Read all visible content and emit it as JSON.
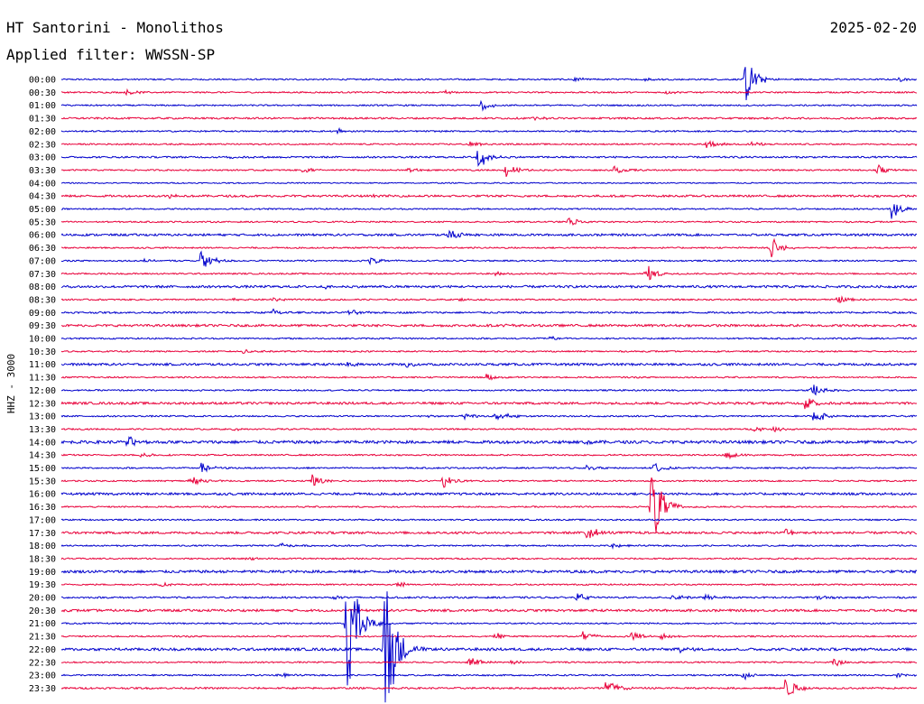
{
  "header": {
    "station": "HT Santorini - Monolithos",
    "date": "2025-02-20",
    "filter": "Applied filter: WWSSN-SP"
  },
  "chart_data": {
    "type": "line",
    "title": "HT Santorini - Monolithos",
    "ylabel": "HHZ - 3000",
    "row_labels": [
      "00:00",
      "00:30",
      "01:00",
      "01:30",
      "02:00",
      "02:30",
      "03:00",
      "03:30",
      "04:00",
      "04:30",
      "05:00",
      "05:30",
      "06:00",
      "06:30",
      "07:00",
      "07:30",
      "08:00",
      "08:30",
      "09:00",
      "09:30",
      "10:00",
      "10:30",
      "11:00",
      "11:30",
      "12:00",
      "12:30",
      "13:00",
      "13:30",
      "14:00",
      "14:30",
      "15:00",
      "15:30",
      "16:00",
      "16:30",
      "17:00",
      "17:30",
      "18:00",
      "18:30",
      "19:00",
      "19:30",
      "20:00",
      "20:30",
      "21:00",
      "21:30",
      "22:00",
      "22:30",
      "23:00",
      "23:30"
    ],
    "trace_colors": [
      "#0000cc",
      "#e8003a"
    ],
    "x_units": "minutes within 30-minute line",
    "x_range": [
      0,
      30
    ],
    "noise_level": [
      1.0,
      1.0,
      1.0,
      1.2,
      1.0,
      1.0,
      1.2,
      1.0,
      0.8,
      1.4,
      1.0,
      1.0,
      1.5,
      1.0,
      1.0,
      1.0,
      1.6,
      1.0,
      1.2,
      1.6,
      1.0,
      1.0,
      1.6,
      1.0,
      1.0,
      1.6,
      1.0,
      1.0,
      2.0,
      1.0,
      1.0,
      1.0,
      1.6,
      1.0,
      1.0,
      1.6,
      1.0,
      1.0,
      1.8,
      1.0,
      1.2,
      1.6,
      1.0,
      1.0,
      1.8,
      1.0,
      1.0,
      1.2
    ],
    "events": [
      {
        "row": 0,
        "t": 17.9,
        "amp": 3
      },
      {
        "row": 0,
        "t": 20.4,
        "amp": 3
      },
      {
        "row": 0,
        "t": 24.0,
        "amp": 28
      },
      {
        "row": 0,
        "t": 29.4,
        "amp": 2
      },
      {
        "row": 1,
        "t": 2.3,
        "amp": 3
      },
      {
        "row": 1,
        "t": 13.4,
        "amp": 3
      },
      {
        "row": 1,
        "t": 21.2,
        "amp": 2
      },
      {
        "row": 2,
        "t": 14.7,
        "amp": 7
      },
      {
        "row": 3,
        "t": 16.6,
        "amp": 2
      },
      {
        "row": 4,
        "t": 9.7,
        "amp": 4
      },
      {
        "row": 5,
        "t": 14.3,
        "amp": 3
      },
      {
        "row": 5,
        "t": 22.6,
        "amp": 6
      },
      {
        "row": 5,
        "t": 24.2,
        "amp": 3
      },
      {
        "row": 5,
        "t": 29.7,
        "amp": 2
      },
      {
        "row": 6,
        "t": 14.6,
        "amp": 15
      },
      {
        "row": 6,
        "t": 5.9,
        "amp": 2
      },
      {
        "row": 7,
        "t": 8.5,
        "amp": 4
      },
      {
        "row": 7,
        "t": 12.1,
        "amp": 3
      },
      {
        "row": 7,
        "t": 15.6,
        "amp": 8
      },
      {
        "row": 7,
        "t": 19.4,
        "amp": 5
      },
      {
        "row": 7,
        "t": 28.6,
        "amp": 8
      },
      {
        "row": 9,
        "t": 3.8,
        "amp": 3
      },
      {
        "row": 9,
        "t": 10.9,
        "amp": 2
      },
      {
        "row": 10,
        "t": 29.1,
        "amp": 14
      },
      {
        "row": 11,
        "t": 17.8,
        "amp": 6
      },
      {
        "row": 12,
        "t": 13.6,
        "amp": 7
      },
      {
        "row": 13,
        "t": 24.9,
        "amp": 12
      },
      {
        "row": 14,
        "t": 4.9,
        "amp": 17
      },
      {
        "row": 14,
        "t": 10.8,
        "amp": 5
      },
      {
        "row": 14,
        "t": 2.8,
        "amp": 2
      },
      {
        "row": 15,
        "t": 15.2,
        "amp": 2
      },
      {
        "row": 15,
        "t": 20.5,
        "amp": 11
      },
      {
        "row": 16,
        "t": 9.3,
        "amp": 2
      },
      {
        "row": 17,
        "t": 5.9,
        "amp": 2
      },
      {
        "row": 17,
        "t": 7.4,
        "amp": 3
      },
      {
        "row": 17,
        "t": 13.9,
        "amp": 2
      },
      {
        "row": 17,
        "t": 27.2,
        "amp": 5
      },
      {
        "row": 18,
        "t": 7.4,
        "amp": 4
      },
      {
        "row": 18,
        "t": 10.1,
        "amp": 4
      },
      {
        "row": 19,
        "t": 15.4,
        "amp": 2
      },
      {
        "row": 20,
        "t": 17.0,
        "amp": 3
      },
      {
        "row": 21,
        "t": 6.4,
        "amp": 3
      },
      {
        "row": 22,
        "t": 10.0,
        "amp": 3
      },
      {
        "row": 22,
        "t": 12.1,
        "amp": 4
      },
      {
        "row": 23,
        "t": 14.9,
        "amp": 4
      },
      {
        "row": 24,
        "t": 26.3,
        "amp": 11
      },
      {
        "row": 25,
        "t": 26.1,
        "amp": 9
      },
      {
        "row": 26,
        "t": 12.8,
        "amp": 2
      },
      {
        "row": 26,
        "t": 14.1,
        "amp": 4
      },
      {
        "row": 26,
        "t": 15.2,
        "amp": 4
      },
      {
        "row": 26,
        "t": 15.7,
        "amp": 3
      },
      {
        "row": 26,
        "t": 26.4,
        "amp": 9
      },
      {
        "row": 27,
        "t": 6.0,
        "amp": 2
      },
      {
        "row": 27,
        "t": 24.3,
        "amp": 3
      },
      {
        "row": 27,
        "t": 25.0,
        "amp": 3
      },
      {
        "row": 28,
        "t": 2.3,
        "amp": 7
      },
      {
        "row": 28,
        "t": 18.4,
        "amp": 3
      },
      {
        "row": 29,
        "t": 2.8,
        "amp": 4
      },
      {
        "row": 29,
        "t": 23.3,
        "amp": 6
      },
      {
        "row": 30,
        "t": 4.9,
        "amp": 6
      },
      {
        "row": 30,
        "t": 18.4,
        "amp": 3
      },
      {
        "row": 30,
        "t": 20.8,
        "amp": 8
      },
      {
        "row": 31,
        "t": 4.5,
        "amp": 6
      },
      {
        "row": 31,
        "t": 8.8,
        "amp": 8
      },
      {
        "row": 31,
        "t": 13.4,
        "amp": 8
      },
      {
        "row": 33,
        "t": 20.7,
        "amp": 52
      },
      {
        "row": 35,
        "t": 18.4,
        "amp": 10
      },
      {
        "row": 35,
        "t": 25.4,
        "amp": 7
      },
      {
        "row": 36,
        "t": 7.7,
        "amp": 3
      },
      {
        "row": 36,
        "t": 19.3,
        "amp": 3
      },
      {
        "row": 37,
        "t": 6.5,
        "amp": 2
      },
      {
        "row": 39,
        "t": 3.5,
        "amp": 3
      },
      {
        "row": 39,
        "t": 11.8,
        "amp": 3
      },
      {
        "row": 40,
        "t": 9.6,
        "amp": 3
      },
      {
        "row": 40,
        "t": 18.1,
        "amp": 5
      },
      {
        "row": 40,
        "t": 21.4,
        "amp": 4
      },
      {
        "row": 40,
        "t": 22.6,
        "amp": 3
      },
      {
        "row": 40,
        "t": 26.5,
        "amp": 4
      },
      {
        "row": 42,
        "t": 10.0,
        "amp": 94
      },
      {
        "row": 43,
        "t": 15.2,
        "amp": 4
      },
      {
        "row": 43,
        "t": 18.3,
        "amp": 6
      },
      {
        "row": 43,
        "t": 20.0,
        "amp": 6
      },
      {
        "row": 43,
        "t": 21.0,
        "amp": 4
      },
      {
        "row": 44,
        "t": 11.3,
        "amp": 118
      },
      {
        "row": 44,
        "t": 21.7,
        "amp": 3
      },
      {
        "row": 45,
        "t": 14.3,
        "amp": 7
      },
      {
        "row": 45,
        "t": 15.8,
        "amp": 4
      },
      {
        "row": 45,
        "t": 27.1,
        "amp": 5
      },
      {
        "row": 46,
        "t": 7.6,
        "amp": 3
      },
      {
        "row": 46,
        "t": 23.9,
        "amp": 5
      },
      {
        "row": 46,
        "t": 29.3,
        "amp": 3
      },
      {
        "row": 47,
        "t": 19.1,
        "amp": 14
      },
      {
        "row": 47,
        "t": 25.4,
        "amp": 14
      }
    ]
  }
}
